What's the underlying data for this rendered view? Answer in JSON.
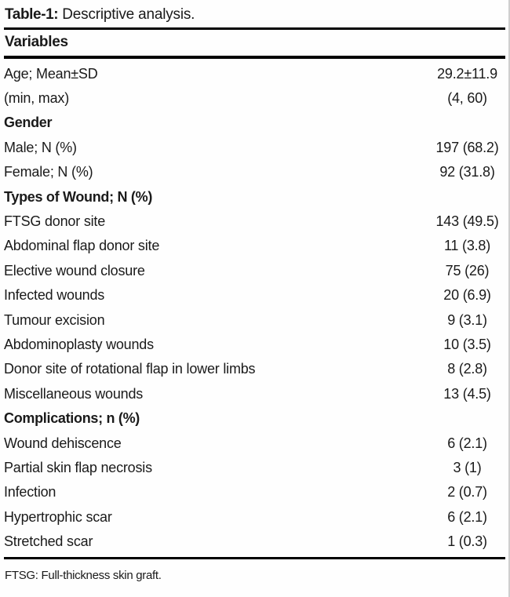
{
  "page": {
    "title_label": "Table-1:",
    "title_text": "Descriptive analysis.",
    "column_header": "Variables",
    "footnote": "FTSG: Full-thickness skin graft.",
    "text_color": "#1a1a1a",
    "rule_color": "#000000"
  },
  "rows": [
    {
      "label": "Age; Mean±SD",
      "value": "29.2±11.9"
    },
    {
      "label": "(min, max)",
      "value": "(4, 60)"
    },
    {
      "label": "Gender",
      "value": ""
    },
    {
      "label": "Male; N (%)",
      "value": "197 (68.2)"
    },
    {
      "label": "Female; N (%)",
      "value": "92 (31.8)"
    },
    {
      "label": "Types of Wound; N (%)",
      "value": ""
    },
    {
      "label": "FTSG donor site",
      "value": "143 (49.5)"
    },
    {
      "label": "Abdominal flap donor site",
      "value": "11 (3.8)"
    },
    {
      "label": "Elective wound closure",
      "value": "75 (26)"
    },
    {
      "label": "Infected wounds",
      "value": "20 (6.9)"
    },
    {
      "label": "Tumour excision",
      "value": "9 (3.1)"
    },
    {
      "label": "Abdominoplasty wounds",
      "value": "10 (3.5)"
    },
    {
      "label": "Donor site of rotational flap in lower limbs",
      "value": "8 (2.8)"
    },
    {
      "label": "Miscellaneous wounds",
      "value": "13 (4.5)"
    },
    {
      "label": "Complications; n (%)",
      "value": ""
    },
    {
      "label": "Wound dehiscence",
      "value": "6 (2.1)"
    },
    {
      "label": "Partial skin flap necrosis",
      "value": "3 (1)"
    },
    {
      "label": "Infection",
      "value": "2 (0.7)"
    },
    {
      "label": "Hypertrophic scar",
      "value": "6 (2.1)"
    },
    {
      "label": "Stretched scar",
      "value": "1 (0.3)"
    }
  ]
}
